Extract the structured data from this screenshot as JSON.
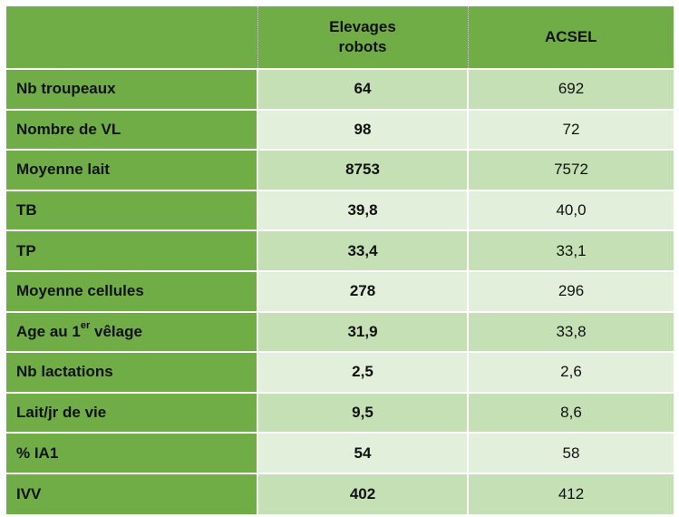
{
  "table": {
    "headers": {
      "label": "",
      "robots": "Elevages robots",
      "acsel": "ACSEL"
    },
    "rows": [
      {
        "label": "Nb troupeaux",
        "robots": "64",
        "acsel": "692"
      },
      {
        "label": "Nombre de VL",
        "robots": "98",
        "acsel": "72"
      },
      {
        "label": "Moyenne lait",
        "robots": "8753",
        "acsel": "7572"
      },
      {
        "label": "TB",
        "robots": "39,8",
        "acsel": "40,0"
      },
      {
        "label": "TP",
        "robots": "33,4",
        "acsel": "33,1"
      },
      {
        "label": "Moyenne cellules",
        "robots": "278",
        "acsel": "296"
      },
      {
        "label_pre": "Age au 1",
        "label_sup": "er",
        "label_post": " vêlage",
        "robots": "31,9",
        "acsel": "33,8"
      },
      {
        "label": "Nb lactations",
        "robots": "2,5",
        "acsel": "2,6"
      },
      {
        "label": "Lait/jr de vie",
        "robots": "9,5",
        "acsel": "8,6"
      },
      {
        "label": "% IA1",
        "robots": "54",
        "acsel": "58"
      },
      {
        "label": "IVV",
        "robots": "402",
        "acsel": "412"
      }
    ]
  },
  "colors": {
    "header_green": "#70ad47",
    "row_dark": "#c5e0b4",
    "row_light": "#e2efda"
  }
}
